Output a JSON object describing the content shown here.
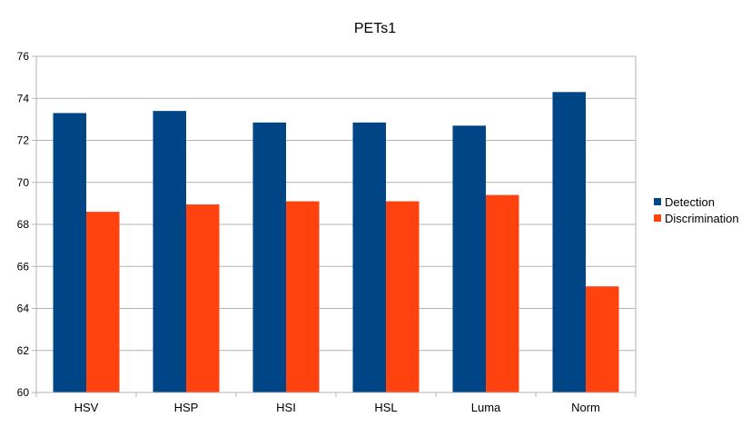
{
  "chart_data": {
    "type": "bar",
    "title": "PETs1",
    "xlabel": "",
    "ylabel": "",
    "categories": [
      "HSV",
      "HSP",
      "HSI",
      "HSL",
      "Luma",
      "Norm"
    ],
    "series": [
      {
        "name": "Detection",
        "color": "#004586",
        "values": [
          73.3,
          73.4,
          72.85,
          72.85,
          72.7,
          74.3
        ]
      },
      {
        "name": "Discrimination",
        "color": "#ff420e",
        "values": [
          68.6,
          68.95,
          69.1,
          69.1,
          69.4,
          65.05
        ]
      }
    ],
    "ylim": [
      60,
      76
    ],
    "yticks": [
      60,
      62,
      64,
      66,
      68,
      70,
      72,
      74,
      76
    ],
    "grid": true,
    "legend_position": "right"
  }
}
